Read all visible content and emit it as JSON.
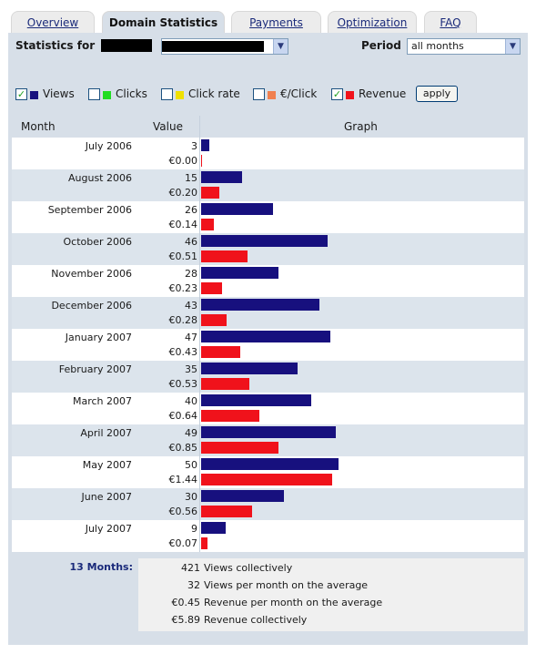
{
  "tabs": [
    {
      "label": "Overview",
      "active": false
    },
    {
      "label": "Domain Statistics",
      "active": true
    },
    {
      "label": "Payments",
      "active": false
    },
    {
      "label": "Optimization",
      "active": false
    },
    {
      "label": "FAQ",
      "active": false
    }
  ],
  "controls": {
    "statistics_for_label": "Statistics for",
    "period_label": "Period",
    "period_value": "all months",
    "dropdown_arrow": "▼"
  },
  "filters": [
    {
      "label": "Views",
      "checked": true,
      "color": "#17107e"
    },
    {
      "label": "Clicks",
      "checked": false,
      "color": "#22dd22"
    },
    {
      "label": "Click rate",
      "checked": false,
      "color": "#f0e000"
    },
    {
      "label": "€/Click",
      "checked": false,
      "color": "#f08050"
    },
    {
      "label": "Revenue",
      "checked": true,
      "color": "#f0121b"
    }
  ],
  "apply_label": "apply",
  "check_mark": "✓",
  "table": {
    "headers": {
      "month": "Month",
      "value": "Value",
      "graph": "Graph"
    },
    "rows": [
      {
        "month": "July 2006",
        "views": 3,
        "revenue": "€0.00"
      },
      {
        "month": "August 2006",
        "views": 15,
        "revenue": "€0.20"
      },
      {
        "month": "September 2006",
        "views": 26,
        "revenue": "€0.14"
      },
      {
        "month": "October 2006",
        "views": 46,
        "revenue": "€0.51"
      },
      {
        "month": "November 2006",
        "views": 28,
        "revenue": "€0.23"
      },
      {
        "month": "December 2006",
        "views": 43,
        "revenue": "€0.28"
      },
      {
        "month": "January 2007",
        "views": 47,
        "revenue": "€0.43"
      },
      {
        "month": "February 2007",
        "views": 35,
        "revenue": "€0.53"
      },
      {
        "month": "March 2007",
        "views": 40,
        "revenue": "€0.64"
      },
      {
        "month": "April 2007",
        "views": 49,
        "revenue": "€0.85"
      },
      {
        "month": "May 2007",
        "views": 50,
        "revenue": "€1.44"
      },
      {
        "month": "June 2007",
        "views": 30,
        "revenue": "€0.56"
      },
      {
        "month": "July 2007",
        "views": 9,
        "revenue": "€0.07"
      }
    ]
  },
  "summary": {
    "label": "13 Months:",
    "lines": [
      {
        "value": "421",
        "text": "Views collectively"
      },
      {
        "value": "32",
        "text": "Views per month on the average"
      },
      {
        "value": "€0.45",
        "text": "Revenue per month on the average"
      },
      {
        "value": "€5.89",
        "text": "Revenue collectively"
      }
    ]
  },
  "colors": {
    "views_bar": "#17107e",
    "revenue_bar": "#f0121b",
    "panel": "#d7dfe8"
  }
}
